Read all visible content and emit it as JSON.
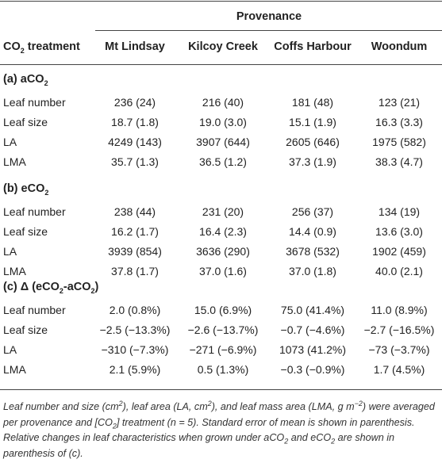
{
  "header": {
    "provenance": "Provenance",
    "co2_treatment": {
      "pre": "CO",
      "sub": "2",
      "post": " treatment"
    },
    "columns": [
      "Mt Lindsay",
      "Kilcoy Creek",
      "Coffs Harbour",
      "Woondum"
    ]
  },
  "sections": [
    {
      "title": {
        "pre": "(a) aCO",
        "sub": "2",
        "post": ""
      },
      "rows": [
        {
          "label": "Leaf number",
          "values": [
            "236 (24)",
            "216 (40)",
            "181 (48)",
            "123 (21)"
          ]
        },
        {
          "label": "Leaf size",
          "values": [
            "18.7 (1.8)",
            "19.0 (3.0)",
            "15.1 (1.9)",
            "16.3 (3.3)"
          ]
        },
        {
          "label": "LA",
          "values": [
            "4249 (143)",
            "3907 (644)",
            "2605 (646)",
            "1975 (582)"
          ]
        },
        {
          "label": "LMA",
          "values": [
            "35.7 (1.3)",
            "36.5 (1.2)",
            "37.3 (1.9)",
            "38.3 (4.7)"
          ]
        }
      ]
    },
    {
      "title": {
        "pre": "(b) eCO",
        "sub": "2",
        "post": ""
      },
      "rows": [
        {
          "label": "Leaf number",
          "values": [
            "238 (44)",
            "231 (20)",
            "256 (37)",
            "134 (19)"
          ]
        },
        {
          "label": "Leaf size",
          "values": [
            "16.2 (1.7)",
            "16.4 (2.3)",
            "14.4 (0.9)",
            "13.6 (3.0)"
          ]
        },
        {
          "label": "LA",
          "values": [
            "3939 (854)",
            "3636 (290)",
            "3678 (532)",
            "1902 (459)"
          ]
        },
        {
          "label": "LMA",
          "values": [
            "37.8 (1.7)",
            "37.0 (1.6)",
            "37.0 (1.8)",
            "40.0 (2.1)"
          ]
        }
      ]
    },
    {
      "title": {
        "pre": "(c) Δ (eCO",
        "sub": "2",
        "mid": "-aCO",
        "sub2": "2",
        "post": ")"
      },
      "rows": [
        {
          "label": "Leaf number",
          "values": [
            "2.0 (0.8%)",
            "15.0 (6.9%)",
            "75.0 (41.4%)",
            "11.0 (8.9%)"
          ]
        },
        {
          "label": "Leaf size",
          "values": [
            "−2.5 (−13.3%)",
            "−2.6 (−13.7%)",
            "−0.7 (−4.6%)",
            "−2.7 (−16.5%)"
          ]
        },
        {
          "label": "LA",
          "values": [
            "−310 (−7.3%)",
            "−271 (−6.9%)",
            "1073 (41.2%)",
            "−73 (−3.7%)"
          ]
        },
        {
          "label": "LMA",
          "values": [
            "2.1 (5.9%)",
            "0.5 (1.3%)",
            "−0.3 (−0.9%)",
            "1.7 (4.5%)"
          ]
        }
      ]
    }
  ],
  "footnote": {
    "t1": "Leaf number and size (cm",
    "s1": "2",
    "t2": "), leaf area (LA, cm",
    "s2": "2",
    "t3": "), and leaf mass area (LMA, g m",
    "s3": "−2",
    "t4": ") were averaged per provenance and [CO",
    "b4": "2",
    "t5": "] treatment (n = 5). Standard error of mean is shown in parenthesis. Relative changes in leaf characteristics when grown under aCO",
    "b5": "2",
    "t6": " and eCO",
    "b6": "2",
    "t7": " are shown in parenthesis of (c)."
  }
}
